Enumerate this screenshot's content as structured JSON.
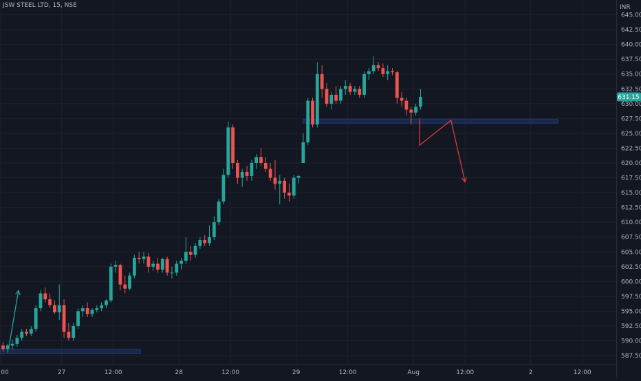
{
  "header": {
    "symbol_line": "JSW STEEL LTD, 15, NSE"
  },
  "colors": {
    "background": "#131722",
    "bull": "#26a69a",
    "bear": "#ef5350",
    "grid": "#1e222d",
    "axis_text": "#b2b5be",
    "zone_fill": "#1c2a4d",
    "zone_stroke": "#2962ff",
    "arrow_green": "#26a69a",
    "arrow_red": "#e0383d"
  },
  "chart_data": {
    "type": "candlestick",
    "currency_label": "INR",
    "ylim": [
      586,
      647.5
    ],
    "y_ticks": [
      "645.00",
      "642.50",
      "640.00",
      "637.50",
      "635.00",
      "632.50",
      "630.00",
      "627.50",
      "625.00",
      "622.50",
      "620.00",
      "617.50",
      "615.00",
      "612.50",
      "610.00",
      "607.50",
      "605.00",
      "602.50",
      "600.00",
      "597.50",
      "595.00",
      "592.50",
      "590.00",
      "587.50"
    ],
    "x_ticks": [
      {
        "label": "00",
        "bar": 0
      },
      {
        "label": "27",
        "bar": 13
      },
      {
        "label": "12:00",
        "bar": 24
      },
      {
        "label": "28",
        "bar": 38
      },
      {
        "label": "12:00",
        "bar": 49
      },
      {
        "label": "29",
        "bar": 63
      },
      {
        "label": "12:00",
        "bar": 74
      },
      {
        "label": "Aug",
        "bar": 88
      },
      {
        "label": "12:00",
        "bar": 99
      },
      {
        "label": "2",
        "bar": 113
      },
      {
        "label": "12:00",
        "bar": 124
      }
    ],
    "last_price": "631.15",
    "candles": [
      [
        589.2,
        589.8,
        588.2,
        588.6
      ],
      [
        588.6,
        589.5,
        588.0,
        589.2
      ],
      [
        589.2,
        590.2,
        588.5,
        589.5
      ],
      [
        589.5,
        591.0,
        589.0,
        590.5
      ],
      [
        590.5,
        592.0,
        590.0,
        591.5
      ],
      [
        591.5,
        592.0,
        590.8,
        591.2
      ],
      [
        591.2,
        592.5,
        590.8,
        592.0
      ],
      [
        592.0,
        596.0,
        591.5,
        595.5
      ],
      [
        595.5,
        598.5,
        595.0,
        598.0
      ],
      [
        598.0,
        599.0,
        596.5,
        597.0
      ],
      [
        597.0,
        598.0,
        595.5,
        596.0
      ],
      [
        596.0,
        596.8,
        594.5,
        594.8
      ],
      [
        594.8,
        599.5,
        593.5,
        596.0
      ],
      [
        596.0,
        597.0,
        590.5,
        591.5
      ],
      [
        591.5,
        593.0,
        590.0,
        590.5
      ],
      [
        590.5,
        593.0,
        590.0,
        592.5
      ],
      [
        592.5,
        595.5,
        592.0,
        595.0
      ],
      [
        595.0,
        596.0,
        594.0,
        595.5
      ],
      [
        595.5,
        596.5,
        594.0,
        594.5
      ],
      [
        594.5,
        595.5,
        594.0,
        595.2
      ],
      [
        595.2,
        596.0,
        594.8,
        595.5
      ],
      [
        595.5,
        596.5,
        595.0,
        596.0
      ],
      [
        596.0,
        597.0,
        595.5,
        596.8
      ],
      [
        596.8,
        603.0,
        596.5,
        602.5
      ],
      [
        602.5,
        603.5,
        601.5,
        602.8
      ],
      [
        602.8,
        603.0,
        598.5,
        599.5
      ],
      [
        599.5,
        601.0,
        598.0,
        598.8
      ],
      [
        598.8,
        601.5,
        598.5,
        601.0
      ],
      [
        601.0,
        604.5,
        600.5,
        604.0
      ],
      [
        604.0,
        605.0,
        603.0,
        603.8
      ],
      [
        603.8,
        605.0,
        603.0,
        604.2
      ],
      [
        604.2,
        604.8,
        601.5,
        602.5
      ],
      [
        602.5,
        603.5,
        601.8,
        603.0
      ],
      [
        603.0,
        604.0,
        601.5,
        602.0
      ],
      [
        602.0,
        604.0,
        601.5,
        603.8
      ],
      [
        603.8,
        604.2,
        601.0,
        601.5
      ],
      [
        601.5,
        602.5,
        600.5,
        601.5
      ],
      [
        601.5,
        603.5,
        601.0,
        603.0
      ],
      [
        603.0,
        604.0,
        602.0,
        603.5
      ],
      [
        603.5,
        607.5,
        603.0,
        605.0
      ],
      [
        605.0,
        606.0,
        603.5,
        604.5
      ],
      [
        604.5,
        606.5,
        604.0,
        606.0
      ],
      [
        606.0,
        607.5,
        605.5,
        607.0
      ],
      [
        607.0,
        607.8,
        606.0,
        606.5
      ],
      [
        606.5,
        609.5,
        606.0,
        607.5
      ],
      [
        607.5,
        611.0,
        607.0,
        610.0
      ],
      [
        610.0,
        614.0,
        609.5,
        613.5
      ],
      [
        613.5,
        619.0,
        613.0,
        618.0
      ],
      [
        618.0,
        627.0,
        617.5,
        626.0
      ],
      [
        626.0,
        626.5,
        619.0,
        620.0
      ],
      [
        620.0,
        620.5,
        616.5,
        617.5
      ],
      [
        617.5,
        619.0,
        616.0,
        618.5
      ],
      [
        618.5,
        619.5,
        617.0,
        617.8
      ],
      [
        617.8,
        620.5,
        617.0,
        620.0
      ],
      [
        620.0,
        621.5,
        619.0,
        621.0
      ],
      [
        621.0,
        622.5,
        619.5,
        620.0
      ],
      [
        620.0,
        621.0,
        618.5,
        619.0
      ],
      [
        619.0,
        620.0,
        617.0,
        617.5
      ],
      [
        617.5,
        620.5,
        615.5,
        616.5
      ],
      [
        616.5,
        618.0,
        613.0,
        617.0
      ],
      [
        617.0,
        617.5,
        614.0,
        615.0
      ],
      [
        615.0,
        616.5,
        613.5,
        614.5
      ],
      [
        614.5,
        618.0,
        614.0,
        617.5
      ],
      [
        617.5,
        618.0,
        616.5,
        617.8
      ],
      [
        620.0,
        625.0,
        620.0,
        623.5
      ],
      [
        623.5,
        631.0,
        623.0,
        630.5
      ],
      [
        630.5,
        631.0,
        626.0,
        626.5
      ],
      [
        626.5,
        637.0,
        626.0,
        635.0
      ],
      [
        635.0,
        636.5,
        631.0,
        632.5
      ],
      [
        632.5,
        633.5,
        629.5,
        630.0
      ],
      [
        630.0,
        632.0,
        629.0,
        631.5
      ],
      [
        631.5,
        633.0,
        630.0,
        630.5
      ],
      [
        630.5,
        633.0,
        630.0,
        632.5
      ],
      [
        632.5,
        634.0,
        631.5,
        633.0
      ],
      [
        633.0,
        633.5,
        631.5,
        632.0
      ],
      [
        632.0,
        633.0,
        631.5,
        632.5
      ],
      [
        632.5,
        633.0,
        631.0,
        631.5
      ],
      [
        631.5,
        635.5,
        631.0,
        635.0
      ],
      [
        635.0,
        636.0,
        634.0,
        635.5
      ],
      [
        635.5,
        638.0,
        635.0,
        636.5
      ],
      [
        636.5,
        637.0,
        635.5,
        636.0
      ],
      [
        636.0,
        636.8,
        634.5,
        635.0
      ],
      [
        635.0,
        636.5,
        634.0,
        635.5
      ],
      [
        635.5,
        636.0,
        634.8,
        635.3
      ],
      [
        635.3,
        635.5,
        630.0,
        631.0
      ],
      [
        631.0,
        632.0,
        629.5,
        630.5
      ],
      [
        630.5,
        631.0,
        628.0,
        629.0
      ],
      [
        629.0,
        629.5,
        626.5,
        628.5
      ],
      [
        628.5,
        630.0,
        628.0,
        629.5
      ],
      [
        629.5,
        632.5,
        629.0,
        631.15
      ]
    ],
    "annotations": [
      {
        "type": "zone",
        "bar_start": -1,
        "bar_end": 29.8,
        "price_low": 587.8,
        "price_high": 588.6
      },
      {
        "type": "zone",
        "bar_start": 64.4,
        "bar_end": 118.8,
        "price_low": 626.8,
        "price_high": 627.4
      },
      {
        "type": "arrow",
        "color": "green",
        "points": [
          [
            1.8,
            589.2
          ],
          [
            3.8,
            598.5
          ]
        ]
      },
      {
        "type": "arrow",
        "color": "red",
        "points": [
          [
            89.3,
            627.5
          ],
          [
            89.3,
            623.0
          ],
          [
            96.0,
            627.2
          ],
          [
            99.0,
            616.8
          ]
        ]
      }
    ]
  }
}
